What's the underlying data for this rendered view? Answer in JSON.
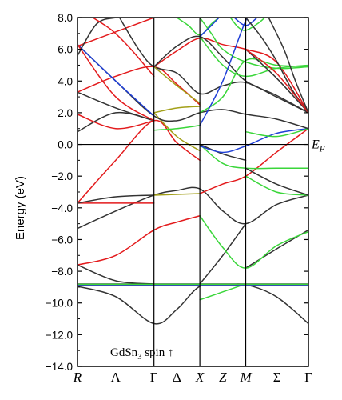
{
  "chart_data": {
    "type": "line",
    "title": "",
    "annotation": {
      "prefix": "GdSn",
      "subscript": "3",
      "suffix": " spin ↑"
    },
    "xlabel": "",
    "ylabel": "Energy (eV)",
    "fermi_label": {
      "main": "E",
      "sub": "F"
    },
    "ylim": [
      -14,
      8
    ],
    "yticks": [
      8,
      6,
      4,
      2,
      0,
      -2,
      -4,
      -6,
      -8,
      -10,
      -12,
      -14
    ],
    "ytick_labels": [
      "8.0",
      "6.0",
      "4.0",
      "2.0",
      "0.0",
      "−2.0",
      "−4.0",
      "−6.0",
      "−8.0",
      "−10.0",
      "−12.0",
      "−14.0"
    ],
    "kpoints": [
      {
        "label": "R",
        "x": 0,
        "style": "italic",
        "line": false
      },
      {
        "label": "Λ",
        "x": 0.5,
        "style": "greek",
        "line": false
      },
      {
        "label": "Γ",
        "x": 1,
        "style": "greek",
        "line": true
      },
      {
        "label": "Δ",
        "x": 1.3,
        "style": "greek",
        "line": false
      },
      {
        "label": "X",
        "x": 1.6,
        "style": "italic",
        "line": true
      },
      {
        "label": "Z",
        "x": 1.9,
        "style": "italic",
        "line": false
      },
      {
        "label": "M",
        "x": 2.2,
        "style": "italic",
        "line": true
      },
      {
        "label": "Σ",
        "x": 2.61,
        "style": "greek",
        "line": false
      },
      {
        "label": "Γ",
        "x": 3.02,
        "style": "greek",
        "line": false
      }
    ],
    "xlim": [
      0,
      3.02
    ],
    "colors": {
      "black": "#333333",
      "red": "#e31a1c",
      "blue": "#1f3fd6",
      "green": "#3ad63a",
      "olive": "#a3a019"
    },
    "series": [
      {
        "color": "black",
        "points": [
          [
            0,
            -8.8
          ],
          [
            0.5,
            -8.8
          ],
          [
            1,
            -8.8
          ],
          [
            1.3,
            -8.8
          ],
          [
            1.6,
            -8.8
          ],
          [
            1.9,
            -8.8
          ],
          [
            2.2,
            -8.8
          ],
          [
            2.6,
            -8.8
          ],
          [
            3.02,
            -8.8
          ]
        ]
      },
      {
        "color": "black",
        "points": [
          [
            0,
            -8.95
          ],
          [
            0.5,
            -9.6
          ],
          [
            1,
            -11.3
          ],
          [
            1.3,
            -10.4
          ],
          [
            1.6,
            -8.95
          ],
          [
            1.9,
            -8.9
          ],
          [
            2.2,
            -8.85
          ],
          [
            2.6,
            -9.6
          ],
          [
            3.02,
            -11.3
          ]
        ]
      },
      {
        "color": "red",
        "points": [
          [
            0,
            -7.6
          ],
          [
            0.5,
            -7.0
          ],
          [
            1,
            -5.4
          ],
          [
            1.3,
            -4.9
          ],
          [
            1.6,
            -4.5
          ]
        ]
      },
      {
        "color": "black",
        "points": [
          [
            0,
            -7.6
          ],
          [
            0.5,
            -8.6
          ],
          [
            1,
            -8.8
          ]
        ]
      },
      {
        "color": "black",
        "points": [
          [
            0,
            -5.3
          ],
          [
            0.5,
            -4.2
          ],
          [
            1,
            -3.2
          ],
          [
            1.3,
            -2.9
          ],
          [
            1.6,
            -2.8
          ],
          [
            1.9,
            -4.2
          ],
          [
            2.2,
            -5.0
          ],
          [
            2.6,
            -3.8
          ],
          [
            3.02,
            -3.2
          ]
        ]
      },
      {
        "color": "black",
        "points": [
          [
            1.6,
            -8.8
          ],
          [
            1.9,
            -7.0
          ],
          [
            2.2,
            -5.0
          ]
        ]
      },
      {
        "color": "black",
        "points": [
          [
            2.2,
            -7.8
          ],
          [
            2.6,
            -6.6
          ],
          [
            3.02,
            -5.4
          ]
        ]
      },
      {
        "color": "green",
        "points": [
          [
            1.6,
            -9.8
          ],
          [
            1.9,
            -9.3
          ],
          [
            2.2,
            -8.8
          ]
        ]
      },
      {
        "color": "green",
        "points": [
          [
            1.6,
            -4.5
          ],
          [
            1.9,
            -6.5
          ],
          [
            2.2,
            -7.8
          ],
          [
            2.6,
            -6.4
          ],
          [
            3.02,
            -5.5
          ]
        ]
      },
      {
        "color": "red",
        "points": [
          [
            0,
            -3.7
          ],
          [
            0.5,
            -3.7
          ],
          [
            1,
            -3.7
          ]
        ]
      },
      {
        "color": "black",
        "points": [
          [
            0,
            -3.7
          ],
          [
            0.5,
            -3.3
          ],
          [
            1,
            -3.2
          ]
        ]
      },
      {
        "color": "red",
        "points": [
          [
            0,
            -3.7
          ],
          [
            0.5,
            -1.0
          ],
          [
            1,
            1.5
          ],
          [
            1.3,
            0.1
          ],
          [
            1.6,
            -1.0
          ]
        ]
      },
      {
        "color": "olive",
        "points": [
          [
            1,
            -3.2
          ],
          [
            1.3,
            -3.15
          ],
          [
            1.6,
            -3.1
          ]
        ]
      },
      {
        "color": "red",
        "points": [
          [
            1.6,
            -3.1
          ],
          [
            1.9,
            -2.5
          ],
          [
            2.2,
            -2.0
          ],
          [
            2.6,
            -0.5
          ],
          [
            3.02,
            1.0
          ]
        ]
      },
      {
        "color": "green",
        "points": [
          [
            2.2,
            -2.0
          ],
          [
            2.6,
            -3.0
          ],
          [
            3.02,
            -3.2
          ]
        ]
      },
      {
        "color": "green",
        "points": [
          [
            1.6,
            0.0
          ],
          [
            1.9,
            -1.2
          ],
          [
            2.2,
            -1.5
          ],
          [
            2.6,
            -1.5
          ],
          [
            3.02,
            -1.5
          ]
        ]
      },
      {
        "color": "black",
        "points": [
          [
            2.2,
            -1.5
          ],
          [
            2.6,
            -2.5
          ],
          [
            3.02,
            -3.2
          ]
        ]
      },
      {
        "color": "black",
        "points": [
          [
            1.6,
            0.0
          ],
          [
            1.9,
            -0.6
          ],
          [
            2.2,
            -1.0
          ]
        ]
      },
      {
        "color": "olive",
        "points": [
          [
            1,
            2.0
          ],
          [
            1.3,
            0.5
          ],
          [
            1.6,
            -0.4
          ]
        ]
      },
      {
        "color": "blue",
        "points": [
          [
            1.6,
            -0.1
          ],
          [
            1.9,
            -0.5
          ],
          [
            2.2,
            -0.1
          ],
          [
            2.6,
            0.7
          ],
          [
            3.02,
            1.0
          ]
        ]
      },
      {
        "color": "green",
        "points": [
          [
            1,
            0.9
          ],
          [
            1.3,
            1.0
          ],
          [
            1.6,
            1.2
          ]
        ]
      },
      {
        "color": "green",
        "points": [
          [
            2.2,
            0.8
          ],
          [
            2.6,
            0.5
          ],
          [
            3.02,
            1.0
          ]
        ]
      },
      {
        "color": "black",
        "points": [
          [
            0,
            0.8
          ],
          [
            0.5,
            2.0
          ],
          [
            1,
            1.5
          ]
        ]
      },
      {
        "color": "black",
        "points": [
          [
            0,
            3.3
          ],
          [
            0.5,
            2.3
          ],
          [
            1,
            1.5
          ]
        ]
      },
      {
        "color": "red",
        "points": [
          [
            0,
            3.3
          ],
          [
            0.5,
            4.3
          ],
          [
            1,
            4.9
          ],
          [
            1.3,
            3.8
          ],
          [
            1.6,
            2.5
          ]
        ]
      },
      {
        "color": "red",
        "points": [
          [
            0,
            1.9
          ],
          [
            0.5,
            1.0
          ],
          [
            1,
            1.5
          ]
        ]
      },
      {
        "color": "black",
        "points": [
          [
            0,
            6.3
          ],
          [
            0.5,
            4.0
          ],
          [
            1,
            1.8
          ],
          [
            1.3,
            1.5
          ],
          [
            1.6,
            2.0
          ],
          [
            1.9,
            2.2
          ],
          [
            2.2,
            1.9
          ],
          [
            2.6,
            1.6
          ],
          [
            3.02,
            1.0
          ]
        ]
      },
      {
        "color": "blue",
        "points": [
          [
            0,
            6.3
          ],
          [
            0.5,
            4.0
          ],
          [
            1,
            1.8
          ]
        ]
      },
      {
        "color": "red",
        "points": [
          [
            0,
            6.3
          ],
          [
            0.5,
            3.0
          ],
          [
            1,
            1.5
          ]
        ]
      },
      {
        "color": "red",
        "points": [
          [
            0,
            6.2
          ],
          [
            0.5,
            7.1
          ],
          [
            1,
            8.0
          ]
        ]
      },
      {
        "color": "black",
        "points": [
          [
            0,
            5.6
          ],
          [
            0.25,
            7.6
          ],
          [
            0.5,
            8.0
          ]
        ]
      },
      {
        "color": "red",
        "points": [
          [
            0.2,
            8.0
          ],
          [
            0.45,
            7.2
          ],
          [
            0.7,
            6.0
          ],
          [
            1,
            4.3
          ]
        ]
      },
      {
        "color": "black",
        "points": [
          [
            0.55,
            8.0
          ],
          [
            0.8,
            6.0
          ],
          [
            1,
            4.9
          ],
          [
            1.3,
            4.5
          ],
          [
            1.6,
            3.2
          ],
          [
            1.9,
            3.7
          ],
          [
            2.2,
            3.9
          ],
          [
            2.6,
            3.0
          ],
          [
            3.02,
            2.0
          ]
        ]
      },
      {
        "color": "olive",
        "points": [
          [
            1,
            4.9
          ],
          [
            1.3,
            3.7
          ],
          [
            1.6,
            2.6
          ]
        ]
      },
      {
        "color": "olive",
        "points": [
          [
            1,
            2.0
          ],
          [
            1.3,
            2.3
          ],
          [
            1.6,
            2.4
          ]
        ]
      },
      {
        "color": "red",
        "points": [
          [
            1,
            4.9
          ],
          [
            1.3,
            5.9
          ],
          [
            1.6,
            6.7
          ],
          [
            1.9,
            6.3
          ],
          [
            2.2,
            6.0
          ],
          [
            2.6,
            5.2
          ],
          [
            3.02,
            2.0
          ]
        ]
      },
      {
        "color": "black",
        "points": [
          [
            1,
            4.9
          ],
          [
            1.3,
            6.2
          ],
          [
            1.6,
            6.8
          ],
          [
            1.9,
            5.5
          ],
          [
            2.2,
            4.0
          ],
          [
            2.6,
            3.1
          ],
          [
            3.02,
            2.0
          ]
        ]
      },
      {
        "color": "green",
        "points": [
          [
            1.6,
            6.8
          ],
          [
            1.9,
            5.0
          ],
          [
            2.2,
            4.3
          ],
          [
            2.6,
            4.8
          ],
          [
            3.02,
            5.0
          ]
        ]
      },
      {
        "color": "green",
        "points": [
          [
            1.6,
            8.0
          ],
          [
            1.75,
            7.0
          ],
          [
            1.9,
            6.0
          ],
          [
            2.2,
            5.2
          ],
          [
            2.6,
            4.8
          ],
          [
            3.02,
            4.9
          ]
        ]
      },
      {
        "color": "green",
        "points": [
          [
            1.6,
            2.0
          ],
          [
            1.9,
            3.0
          ],
          [
            2.2,
            5.3
          ],
          [
            2.6,
            5.0
          ],
          [
            3.02,
            4.9
          ]
        ]
      },
      {
        "color": "green",
        "points": [
          [
            1.3,
            8.0
          ],
          [
            1.45,
            7.5
          ],
          [
            1.6,
            6.9
          ],
          [
            1.75,
            7.6
          ],
          [
            1.85,
            8.0
          ]
        ]
      },
      {
        "color": "blue",
        "points": [
          [
            1.6,
            1.2
          ],
          [
            1.9,
            4.0
          ],
          [
            2.2,
            7.8
          ],
          [
            2.3,
            8.0
          ]
        ]
      },
      {
        "color": "blue",
        "points": [
          [
            1.6,
            6.8
          ],
          [
            1.75,
            7.5
          ],
          [
            1.85,
            8.0
          ]
        ]
      },
      {
        "color": "blue",
        "points": [
          [
            2.05,
            8.0
          ],
          [
            2.2,
            7.5
          ],
          [
            2.35,
            8.0
          ]
        ]
      },
      {
        "color": "green",
        "points": [
          [
            2.0,
            8.0
          ],
          [
            2.1,
            7.4
          ],
          [
            2.2,
            7.2
          ],
          [
            2.35,
            7.6
          ],
          [
            2.45,
            8.0
          ]
        ]
      },
      {
        "color": "black",
        "points": [
          [
            2.2,
            6.0
          ],
          [
            2.6,
            4.2
          ],
          [
            3.02,
            2.0
          ]
        ]
      },
      {
        "color": "black",
        "points": [
          [
            2.2,
            8.0
          ],
          [
            2.4,
            6.8
          ],
          [
            2.6,
            5.3
          ],
          [
            2.8,
            3.5
          ],
          [
            3.02,
            2.0
          ]
        ]
      },
      {
        "color": "red",
        "points": [
          [
            2.2,
            6.0
          ],
          [
            2.6,
            4.5
          ],
          [
            3.02,
            2.0
          ]
        ]
      },
      {
        "color": "black",
        "points": [
          [
            2.5,
            8.0
          ],
          [
            2.7,
            6.0
          ],
          [
            2.85,
            4.0
          ],
          [
            3.02,
            2.0
          ]
        ]
      }
    ],
    "flat_bands_near_minus_8_9": [
      {
        "color": "red",
        "points": [
          [
            0,
            -8.85
          ],
          [
            3.02,
            -8.85
          ]
        ]
      },
      {
        "color": "blue",
        "points": [
          [
            0,
            -8.9
          ],
          [
            3.02,
            -8.9
          ]
        ]
      },
      {
        "color": "green",
        "points": [
          [
            0,
            -8.82
          ],
          [
            3.02,
            -8.82
          ]
        ]
      }
    ]
  }
}
